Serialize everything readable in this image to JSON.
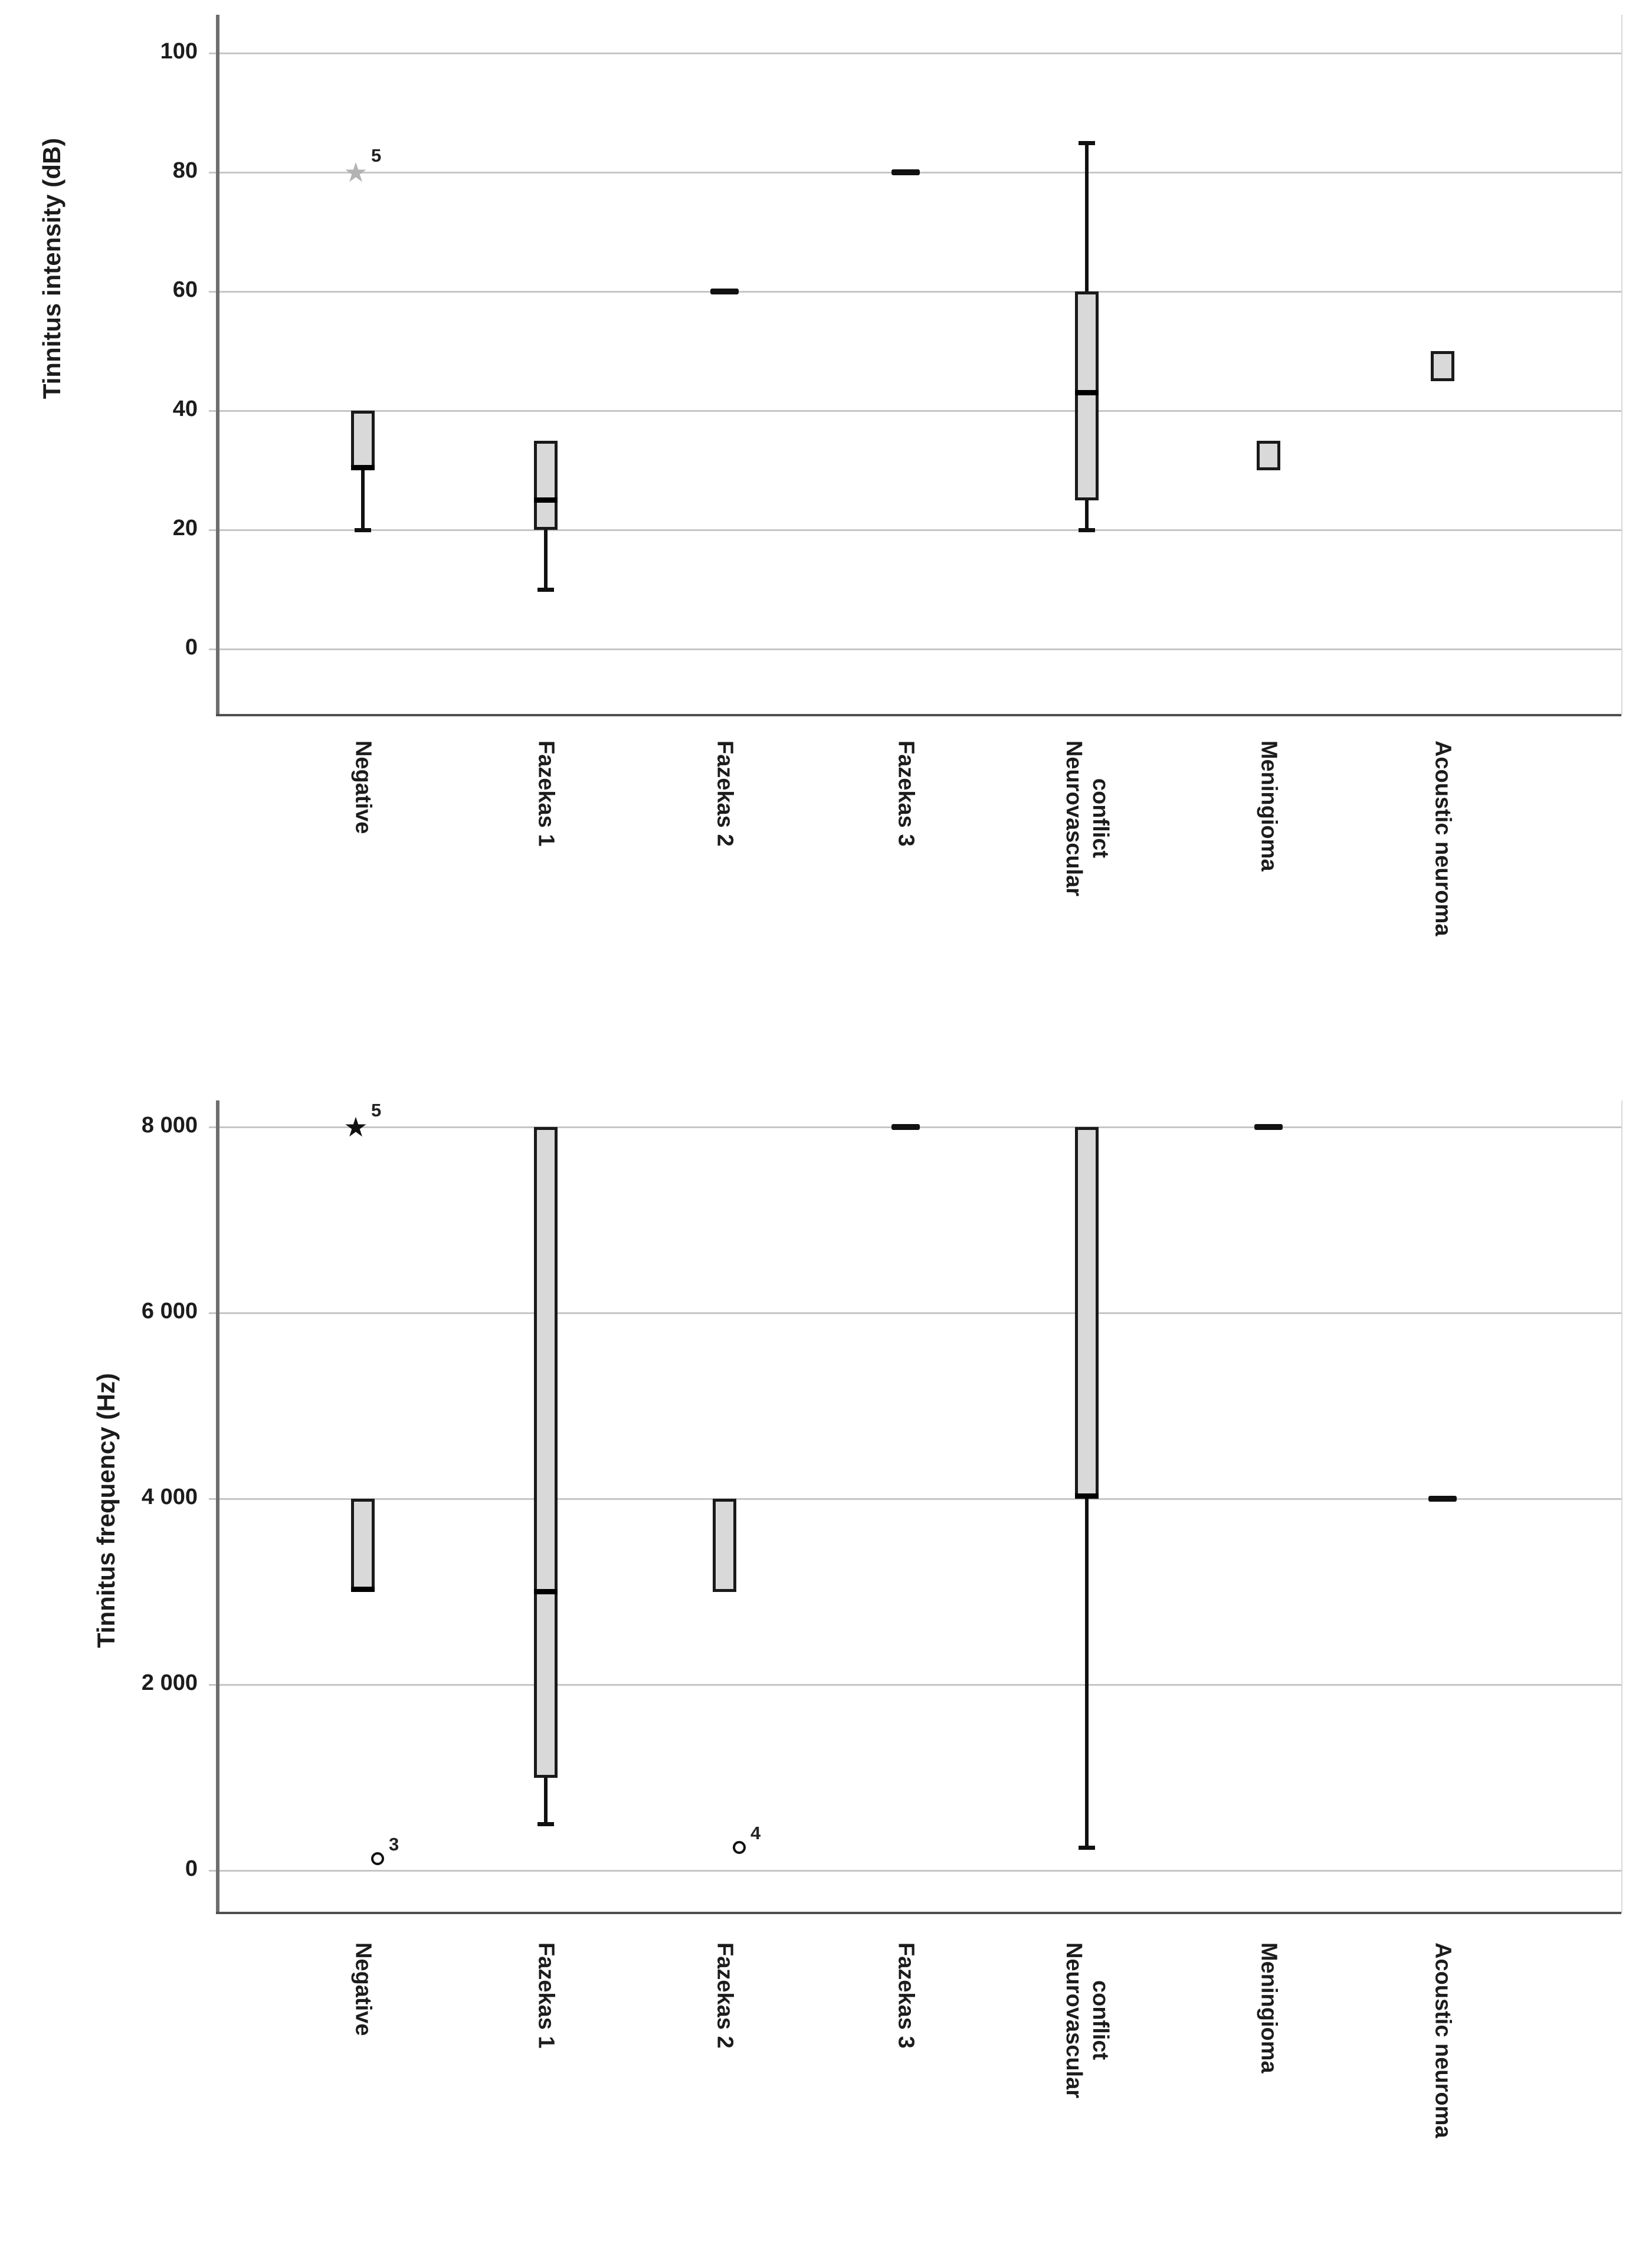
{
  "figure": {
    "background": "#ffffff"
  },
  "colors": {
    "box_fill": "#d9d9d9",
    "box_border": "#1a1a1a",
    "median": "#000000",
    "grid_line": "#c3c8c4",
    "axis_line": "#6e6e6e",
    "frame_line": "#4f4f4f",
    "right_frame": "#d9d9d9",
    "text": "#1c1c1c",
    "faint_star": "#b3b3b3",
    "filled_star": "#111111"
  },
  "chart_data": [
    {
      "type": "boxplot",
      "orientation": "vertical",
      "title": "",
      "xlabel": "",
      "ylabel": "Tinnitus intensity (dB)",
      "ylim": [
        0,
        105
      ],
      "grid": "horizontal",
      "legend": "none",
      "yticks": [
        {
          "value": 100,
          "label": "100"
        },
        {
          "value": 80,
          "label": "80"
        },
        {
          "value": 60,
          "label": "60"
        },
        {
          "value": 40,
          "label": "40"
        },
        {
          "value": 20,
          "label": "20"
        },
        {
          "value": 0,
          "label": "0"
        }
      ],
      "categories": [
        "Negative",
        "Fazekas 1",
        "Fazekas 2",
        "Fazekas 3",
        "Neurovascular conflict",
        "Meningioma",
        "Acoustic neuroma"
      ],
      "category_label_lines": [
        [
          "Negative"
        ],
        [
          "Fazekas 1"
        ],
        [
          "Fazekas 2"
        ],
        [
          "Fazekas 3"
        ],
        [
          "Neurovascular",
          "conflict"
        ],
        [
          "Meningioma"
        ],
        [
          "Acoustic neuroma"
        ]
      ],
      "series": [
        {
          "category": "Negative",
          "min": 20,
          "q1": 30,
          "median": 30,
          "q3": 40,
          "max": 40,
          "outliers": [
            {
              "value": 80,
              "label": "5",
              "marker": "star",
              "variant": "faint"
            }
          ]
        },
        {
          "category": "Fazekas 1",
          "min": 10,
          "q1": 20,
          "median": 25,
          "q3": 35,
          "max": 35,
          "outliers": []
        },
        {
          "category": "Fazekas 2",
          "single_value": 60,
          "outliers": []
        },
        {
          "category": "Fazekas 3",
          "single_value": 80,
          "outliers": []
        },
        {
          "category": "Neurovascular conflict",
          "min": 20,
          "q1": 25,
          "median": 43,
          "q3": 60,
          "max": 85,
          "outliers": []
        },
        {
          "category": "Meningioma",
          "min": 30,
          "q1": 30,
          "median": null,
          "q3": 35,
          "max": 35,
          "outliers": []
        },
        {
          "category": "Acoustic neuroma",
          "min": 45,
          "q1": 45,
          "median": null,
          "q3": 50,
          "max": 50,
          "outliers": []
        }
      ]
    },
    {
      "type": "boxplot",
      "orientation": "vertical",
      "title": "",
      "xlabel": "",
      "ylabel": "Tinnitus frequency (Hz)",
      "ylim": [
        0,
        8400
      ],
      "grid": "horizontal",
      "legend": "none",
      "yticks": [
        {
          "value": 8000,
          "label": "8 000"
        },
        {
          "value": 6000,
          "label": "6 000"
        },
        {
          "value": 4000,
          "label": "4 000"
        },
        {
          "value": 2000,
          "label": "2 000"
        },
        {
          "value": 0,
          "label": "0"
        }
      ],
      "categories": [
        "Negative",
        "Fazekas 1",
        "Fazekas 2",
        "Fazekas 3",
        "Neurovascular conflict",
        "Meningioma",
        "Acoustic neuroma"
      ],
      "category_label_lines": [
        [
          "Negative"
        ],
        [
          "Fazekas 1"
        ],
        [
          "Fazekas 2"
        ],
        [
          "Fazekas 3"
        ],
        [
          "Neurovascular",
          "conflict"
        ],
        [
          "Meningioma"
        ],
        [
          "Acoustic neuroma"
        ]
      ],
      "series": [
        {
          "category": "Negative",
          "min": 3000,
          "q1": 3000,
          "median": 3000,
          "q3": 4000,
          "max": 4000,
          "outliers": [
            {
              "value": 8000,
              "label": "5",
              "marker": "star",
              "variant": "filled"
            },
            {
              "value": 125,
              "label": "3",
              "marker": "circle"
            }
          ]
        },
        {
          "category": "Fazekas 1",
          "min": 500,
          "q1": 1000,
          "median": 3000,
          "q3": 8000,
          "max": 8000,
          "outliers": []
        },
        {
          "category": "Fazekas 2",
          "min": 3000,
          "q1": 3000,
          "median": null,
          "q3": 4000,
          "max": 4000,
          "outliers": [
            {
              "value": 250,
              "label": "4",
              "marker": "circle"
            }
          ]
        },
        {
          "category": "Fazekas 3",
          "single_value": 8000,
          "outliers": []
        },
        {
          "category": "Neurovascular conflict",
          "min": 250,
          "q1": 4000,
          "median": 4000,
          "q3": 8000,
          "max": 8000,
          "outliers": []
        },
        {
          "category": "Meningioma",
          "single_value": 8000,
          "outliers": []
        },
        {
          "category": "Acoustic neuroma",
          "single_value": 4000,
          "outliers": []
        }
      ]
    }
  ]
}
